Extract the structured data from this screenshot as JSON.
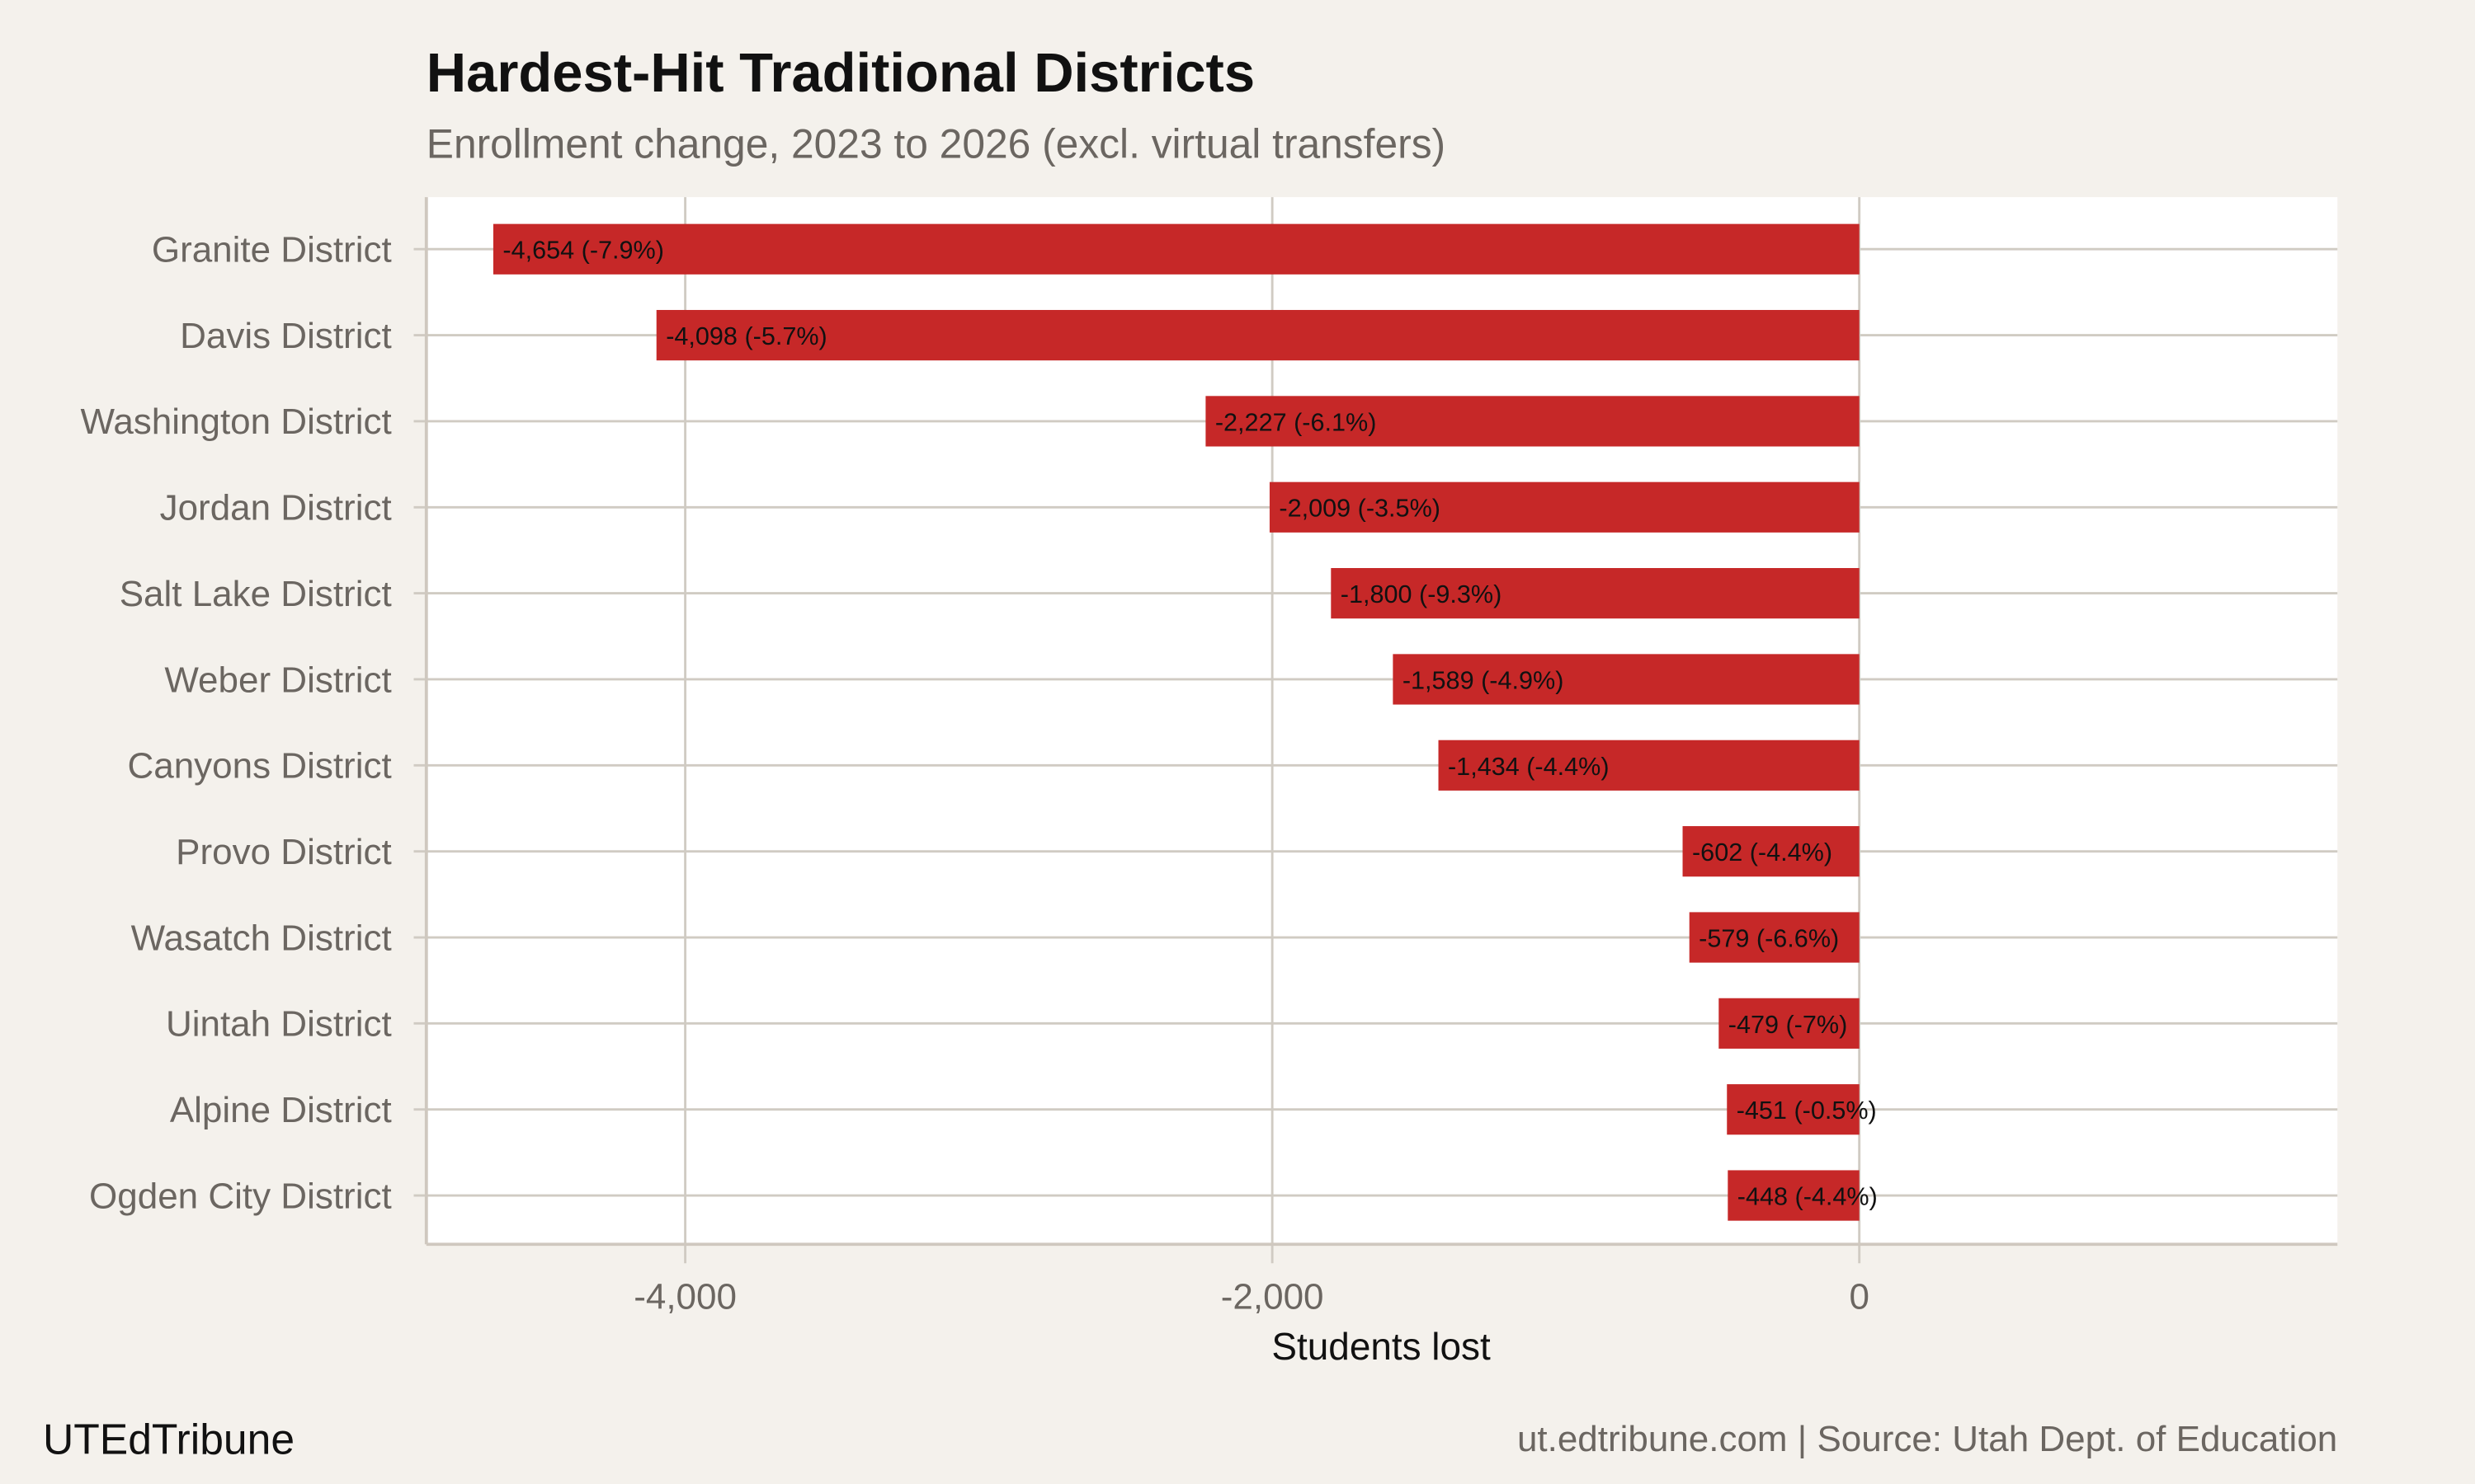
{
  "chart_data": {
    "type": "bar",
    "orientation": "horizontal",
    "title": "Hardest-Hit Traditional Districts",
    "subtitle": "Enrollment change, 2023 to 2026 (excl. virtual transfers)",
    "xlabel": "Students lost",
    "ylabel": "",
    "xlim": [
      -4882,
      1629
    ],
    "xticks": [
      -4000,
      -2000,
      0
    ],
    "xtick_labels": [
      "-4,000",
      "-2,000",
      "0"
    ],
    "grid": true,
    "categories": [
      "Granite District",
      "Davis District",
      "Washington District",
      "Jordan District",
      "Salt Lake District",
      "Weber District",
      "Canyons District",
      "Provo District",
      "Wasatch District",
      "Uintah District",
      "Alpine District",
      "Ogden City District"
    ],
    "values": [
      -4654,
      -4098,
      -2227,
      -2009,
      -1800,
      -1589,
      -1434,
      -602,
      -579,
      -479,
      -451,
      -448
    ],
    "data_labels": [
      "-4,654 (-7.9%)",
      "-4,098 (-5.7%)",
      "-2,227 (-6.1%)",
      "-2,009 (-3.5%)",
      "-1,800 (-9.3%)",
      "-1,589 (-4.9%)",
      "-1,434 (-4.4%)",
      "-602 (-4.4%)",
      "-579 (-6.6%)",
      "-479 (-7%)",
      "-451 (-0.5%)",
      "-448 (-4.4%)"
    ],
    "colors": {
      "bar": "#c62828",
      "background": "#f4f1ec",
      "panel": "#ffffff",
      "grid": "#d0cbc3"
    }
  },
  "footer": {
    "brand": "UTEdTribune",
    "source": "ut.edtribune.com | Source: Utah Dept. of Education"
  }
}
